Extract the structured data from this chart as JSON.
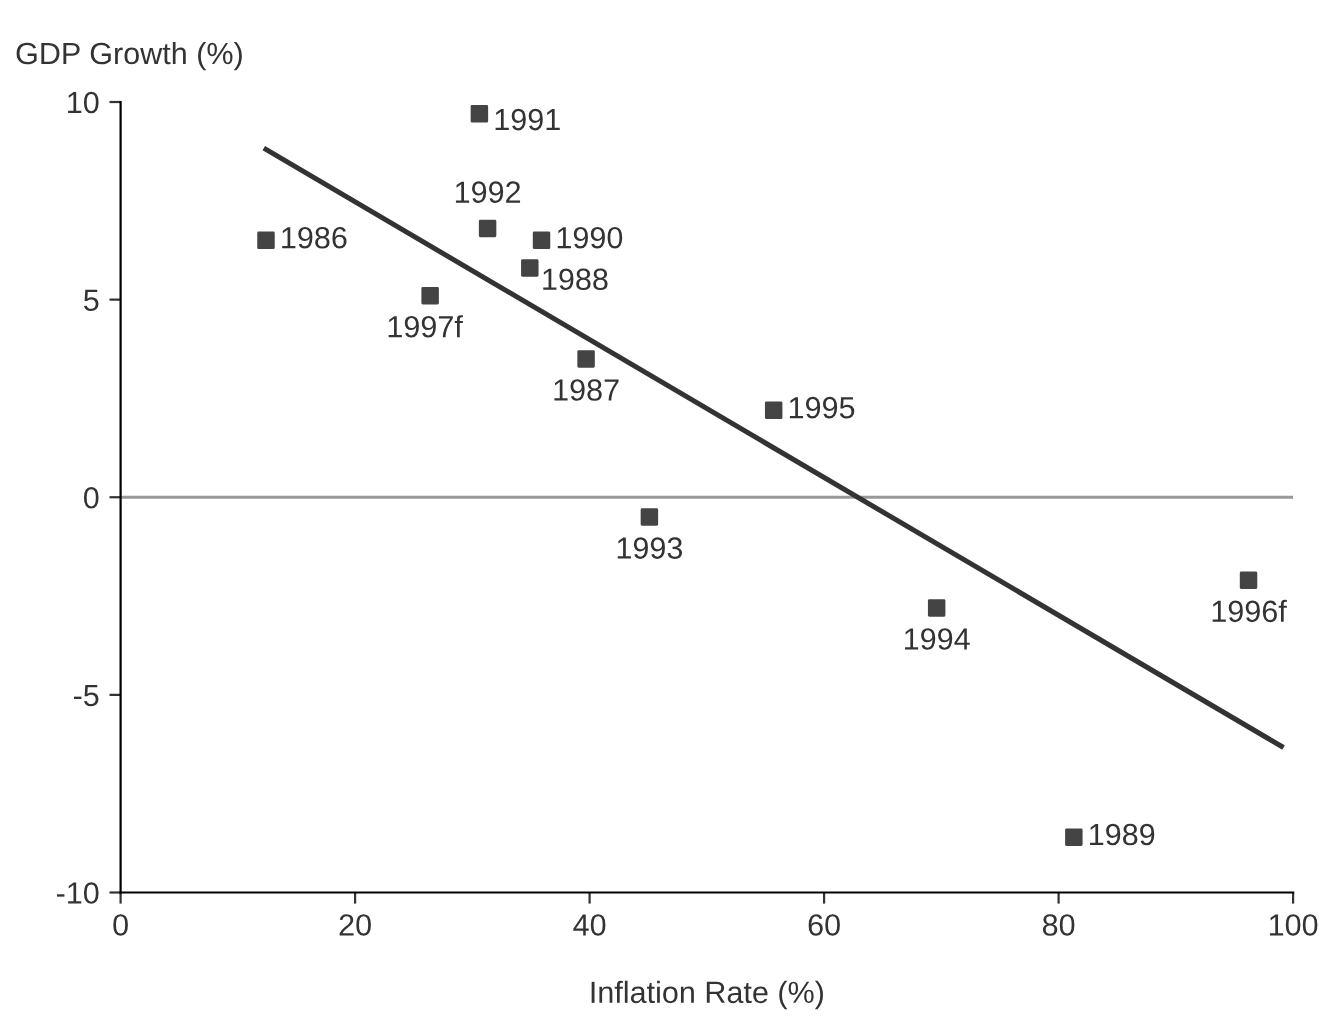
{
  "chart_data": {
    "type": "scatter",
    "xlabel": "Inflation Rate (%)",
    "ylabel": "GDP Growth (%)",
    "xlim": [
      0,
      100
    ],
    "ylim": [
      -10,
      10
    ],
    "xticks": [
      0,
      20,
      40,
      60,
      80,
      100
    ],
    "yticks": [
      -10,
      -5,
      0,
      5,
      10
    ],
    "grid": false,
    "legend": false,
    "series": [
      {
        "marker": "square",
        "color": "#444444",
        "x": [
          12.4,
          30.6,
          31.3,
          35.9,
          34.9,
          26.4,
          39.7,
          55.7,
          45.1,
          69.6,
          96.2,
          81.3
        ],
        "values": [
          6.5,
          9.7,
          6.8,
          6.5,
          5.8,
          5.1,
          3.5,
          2.2,
          -0.5,
          -2.8,
          -2.1,
          -8.6
        ]
      },
      {
        "type": "line",
        "marker": "none",
        "color": "#333333",
        "x": [
          12.4,
          99
        ],
        "values": [
          8.8,
          -6.3
        ]
      }
    ],
    "ref_lines": [
      {
        "axis": "y",
        "value": 0,
        "color": "#999999"
      }
    ],
    "annotations": [
      {
        "text": "1986",
        "x": 12.4,
        "y": 6.5
      },
      {
        "text": "1991",
        "x": 30.6,
        "y": 9.7
      },
      {
        "text": "1992",
        "x": 31.3,
        "y": 6.8
      },
      {
        "text": "1990",
        "x": 35.9,
        "y": 6.5
      },
      {
        "text": "1988",
        "x": 34.9,
        "y": 5.8
      },
      {
        "text": "1997f",
        "x": 26.4,
        "y": 5.1
      },
      {
        "text": "1987",
        "x": 39.7,
        "y": 3.5
      },
      {
        "text": "1995",
        "x": 55.7,
        "y": 2.2
      },
      {
        "text": "1993",
        "x": 45.1,
        "y": -0.5
      },
      {
        "text": "1994",
        "x": 69.6,
        "y": -2.8
      },
      {
        "text": "1996f",
        "x": 96.2,
        "y": -2.1
      },
      {
        "text": "1989",
        "x": 81.3,
        "y": -8.6
      }
    ]
  }
}
